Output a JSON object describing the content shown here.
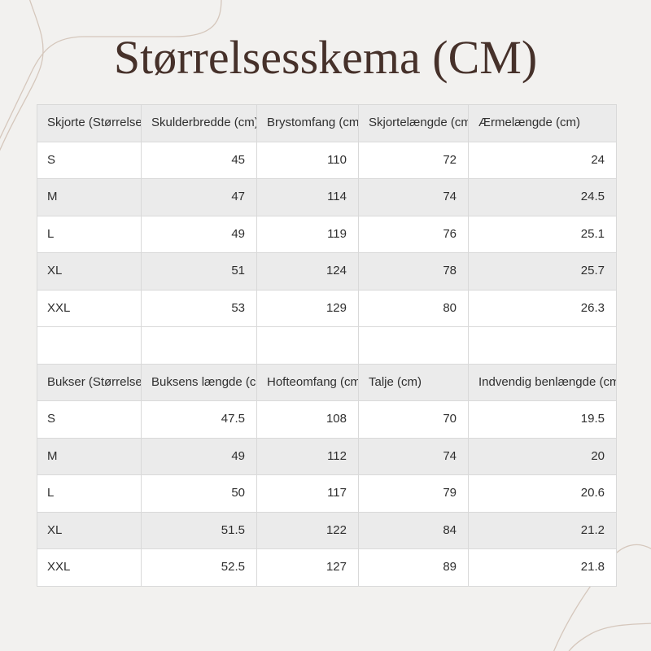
{
  "page": {
    "title": "Størrelsesskema (CM)"
  },
  "colors": {
    "background": "#F2F1EF",
    "header_row_bg": "#EBEBEB",
    "alt_row_bg": "#EBEBEB",
    "row_bg": "#FFFFFF",
    "cell_border": "#D9D9D9",
    "cell_text": "#2F2F2F",
    "title_text": "#46312A",
    "decorative_line": "#D5C7BC"
  },
  "tables": [
    {
      "name": "shirt-size-table",
      "headers": [
        "Skjorte (Størrelse)",
        "Skulderbredde (cm)",
        "Brystomfang (cm)",
        "Skjortelængde (cm)",
        "Ærmelængde (cm)"
      ],
      "rows": [
        [
          "S",
          "45",
          "110",
          "72",
          "24"
        ],
        [
          "M",
          "47",
          "114",
          "74",
          "24.5"
        ],
        [
          "L",
          "49",
          "119",
          "76",
          "25.1"
        ],
        [
          "XL",
          "51",
          "124",
          "78",
          "25.7"
        ],
        [
          "XXL",
          "53",
          "129",
          "80",
          "26.3"
        ]
      ]
    },
    {
      "name": "pants-size-table",
      "headers": [
        "Bukser (Størrelse)",
        "Buksens længde (cm)",
        "Hofteomfang (cm)",
        "Talje (cm)",
        "Indvendig benlængde (cm)"
      ],
      "rows": [
        [
          "S",
          "47.5",
          "108",
          "70",
          "19.5"
        ],
        [
          "M",
          "49",
          "112",
          "74",
          "20"
        ],
        [
          "L",
          "50",
          "117",
          "79",
          "20.6"
        ],
        [
          "XL",
          "51.5",
          "122",
          "84",
          "21.2"
        ],
        [
          "XXL",
          "52.5",
          "127",
          "89",
          "21.8"
        ]
      ]
    }
  ]
}
